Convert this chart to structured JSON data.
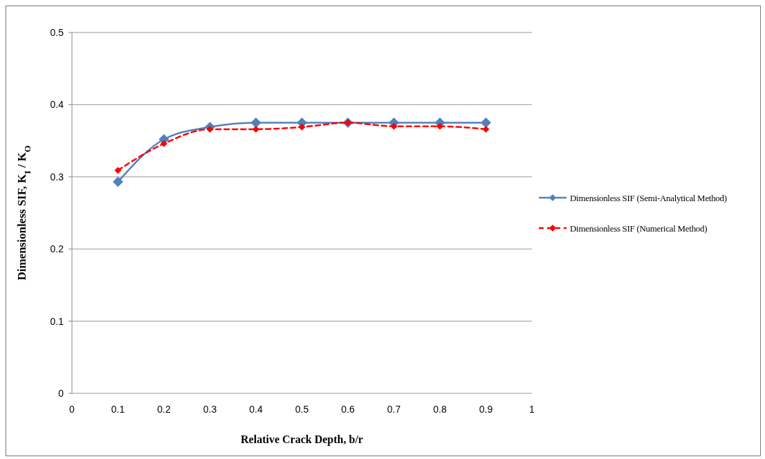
{
  "chart_data": {
    "type": "line",
    "xlabel": "Relative Crack Depth, b/r",
    "ylabel": "Dimensionless  SIF, K$_{I}$ / K$_{O}$",
    "x": [
      0.1,
      0.2,
      0.3,
      0.4,
      0.5,
      0.6,
      0.7,
      0.8,
      0.9
    ],
    "series": [
      {
        "name": "Dimensionless SIF (Semi-Analytical Method)",
        "color": "#4f81bd",
        "line_style": "solid",
        "values": [
          0.293,
          0.352,
          0.369,
          0.375,
          0.375,
          0.375,
          0.375,
          0.375,
          0.375
        ]
      },
      {
        "name": "Dimensionless SIF (Numerical Method)",
        "color": "#ff0000",
        "line_style": "dashed",
        "values": [
          0.309,
          0.346,
          0.366,
          0.366,
          0.369,
          0.375,
          0.37,
          0.37,
          0.366
        ]
      }
    ],
    "xlim": [
      0,
      1
    ],
    "xticks": [
      0,
      0.1,
      0.2,
      0.3,
      0.4,
      0.5,
      0.6,
      0.7,
      0.8,
      0.9,
      1
    ],
    "ylim": [
      0,
      0.5
    ],
    "yticks": [
      0,
      0.1,
      0.2,
      0.3,
      0.4,
      0.5
    ],
    "grid": "y",
    "legend": "right",
    "marker": "diamond"
  }
}
